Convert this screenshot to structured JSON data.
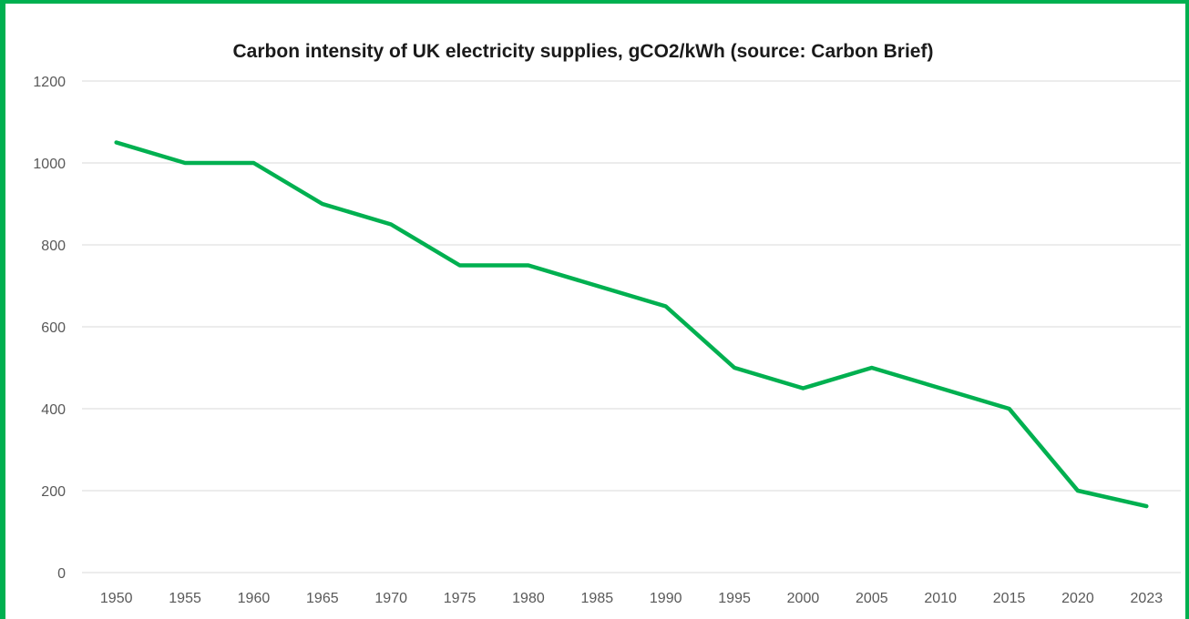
{
  "chart_data": {
    "type": "line",
    "title": "Carbon intensity of UK electricity supplies, gCO2/kWh (source: Carbon Brief)",
    "xlabel": "",
    "ylabel": "",
    "categories": [
      "1950",
      "1955",
      "1960",
      "1965",
      "1970",
      "1975",
      "1980",
      "1985",
      "1990",
      "1995",
      "2000",
      "2005",
      "2010",
      "2015",
      "2020",
      "2023"
    ],
    "series": [
      {
        "values": [
          1050,
          1000,
          1000,
          900,
          850,
          750,
          750,
          700,
          650,
          500,
          450,
          500,
          450,
          400,
          200,
          162
        ],
        "color": "#00b050"
      }
    ],
    "ylim": [
      0,
      1200
    ],
    "yticks": [
      "0",
      "200",
      "400",
      "600",
      "800",
      "1000",
      "1200"
    ],
    "grid": true,
    "legend": "none"
  },
  "colors": {
    "frame": "#00b050",
    "line": "#00b050",
    "grid": "#d9d9d9",
    "tick_text": "#595959",
    "title_text": "#1a1a1a"
  }
}
